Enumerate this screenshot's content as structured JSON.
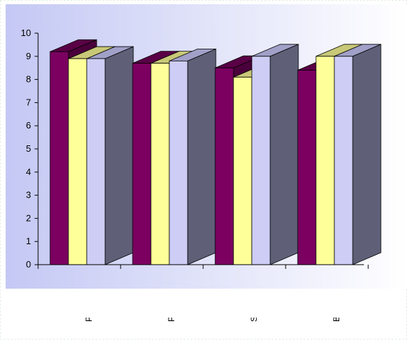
{
  "chart_data": {
    "type": "bar",
    "categories": [
      "PRIMARIA",
      "PUBERES",
      "SECUNDARIA",
      "BACHILLERATO"
    ],
    "category_labels_visible": [
      "PRIMARIA",
      "PUBERES",
      "SECUNDARIA",
      "BACHILLERATO"
    ],
    "series": [
      {
        "values": [
          9.2,
          8.7,
          8.5,
          8.4
        ]
      },
      {
        "values": [
          8.9,
          8.7,
          8.1,
          9.0
        ]
      },
      {
        "values": [
          8.9,
          8.8,
          9.0,
          9.0
        ]
      }
    ],
    "ylim": [
      0,
      10
    ],
    "yticks": [
      "0",
      "1",
      "2",
      "3",
      "4",
      "5",
      "6",
      "7",
      "8",
      "9",
      "10"
    ],
    "grid": false,
    "legend": "none",
    "three_d": true,
    "series_colors": [
      {
        "front": "#7b0060",
        "top": "#5a0046",
        "side": "#4a003a"
      },
      {
        "front": "#ffff99",
        "top": "#c8c878",
        "side": "#a5a560"
      },
      {
        "front": "#cdcdf5",
        "top": "#a0a0c8",
        "side": "#5f6078"
      }
    ],
    "plot_background": [
      "#c4c8f4",
      "#ffffff"
    ],
    "axis_color": "#000000"
  }
}
